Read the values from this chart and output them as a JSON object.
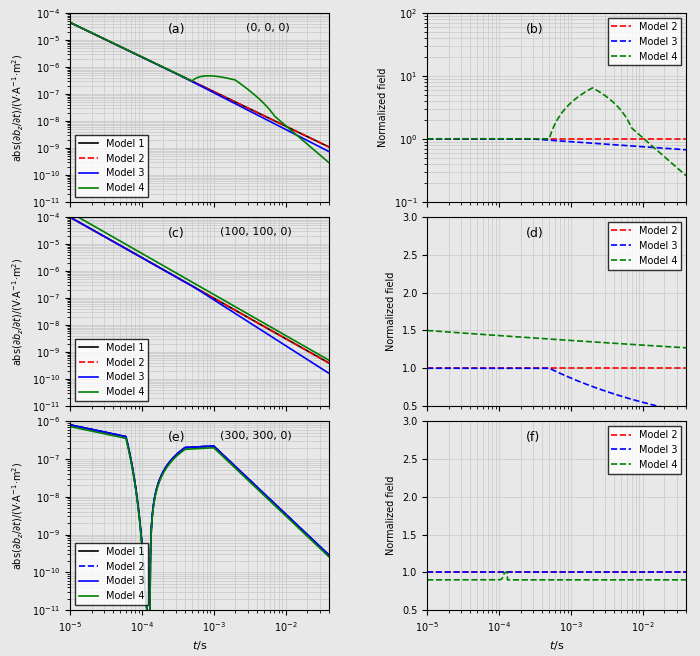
{
  "fig_width": 7.0,
  "fig_height": 6.56,
  "dpi": 100,
  "background_color": "#e8e8e8",
  "grid_color": "#c8c8c8",
  "lw": 1.2,
  "xlim": [
    1e-05,
    0.04
  ],
  "panels_left": [
    {
      "label": "a",
      "location": "(0, 0, 0)",
      "ylim": [
        1e-11,
        0.0001
      ]
    },
    {
      "label": "c",
      "location": "(100, 100, 0)",
      "ylim": [
        1e-11,
        0.0001
      ]
    },
    {
      "label": "e",
      "location": "(300, 300, 0)",
      "ylim": [
        1e-11,
        1e-06
      ]
    }
  ],
  "panels_right": [
    {
      "label": "b",
      "ylim_log": [
        0.1,
        100
      ],
      "is_log": true
    },
    {
      "label": "d",
      "ylim_lin": [
        0.5,
        3.0
      ],
      "is_log": false
    },
    {
      "label": "f",
      "ylim_lin": [
        0.5,
        3.0
      ],
      "is_log": false
    }
  ]
}
